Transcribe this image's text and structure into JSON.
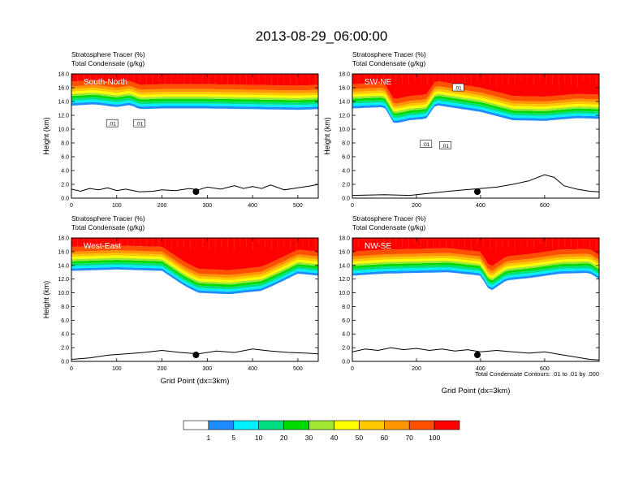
{
  "figure": {
    "title": "2013-08-29_06:00:00",
    "footnote": "Total Condensate Contours: .01 to .01 by .000"
  },
  "colorbar": {
    "colors": [
      "#ffffff",
      "#1e8cff",
      "#00f0ff",
      "#00e080",
      "#00dc00",
      "#a0e632",
      "#ffff00",
      "#ffc800",
      "#ff9600",
      "#ff5000",
      "#ff0000"
    ],
    "labels": [
      "1",
      "5",
      "10",
      "20",
      "30",
      "40",
      "50",
      "60",
      "70",
      "100"
    ]
  },
  "chart_data": [
    {
      "type": "heatmap",
      "panel_label": "South-North",
      "header": [
        "Stratosphere Tracer   (%)",
        "Total Condensate   (g/kg)"
      ],
      "ylabel": "Height (km)",
      "xlabel": "",
      "xlim": [
        0,
        545
      ],
      "ylim": [
        0,
        18
      ],
      "xticks": [
        "0",
        "100",
        "200",
        "300",
        "400",
        "500"
      ],
      "yticks": [
        "0.0",
        "2.0",
        "4.0",
        "6.0",
        "8.0",
        "10.0",
        "12.0",
        "14.0",
        "16.0",
        "18.0"
      ],
      "tracer_base_km": [
        [
          0,
          13.4
        ],
        [
          50,
          13.6
        ],
        [
          100,
          13.2
        ],
        [
          130,
          13.5
        ],
        [
          150,
          12.9
        ],
        [
          200,
          13.0
        ],
        [
          300,
          13.0
        ],
        [
          400,
          12.9
        ],
        [
          500,
          12.8
        ],
        [
          545,
          12.9
        ]
      ],
      "terrain_km": [
        [
          0,
          1.3
        ],
        [
          20,
          1.0
        ],
        [
          40,
          1.4
        ],
        [
          60,
          1.2
        ],
        [
          80,
          1.5
        ],
        [
          100,
          1.1
        ],
        [
          120,
          1.3
        ],
        [
          150,
          0.9
        ],
        [
          180,
          1.0
        ],
        [
          200,
          1.2
        ],
        [
          230,
          1.1
        ],
        [
          260,
          1.4
        ],
        [
          280,
          1.2
        ],
        [
          300,
          1.6
        ],
        [
          330,
          1.3
        ],
        [
          360,
          1.8
        ],
        [
          380,
          1.4
        ],
        [
          400,
          1.7
        ],
        [
          420,
          1.4
        ],
        [
          440,
          1.9
        ],
        [
          470,
          1.2
        ],
        [
          500,
          1.5
        ],
        [
          530,
          1.8
        ],
        [
          545,
          2.0
        ]
      ],
      "marker_x": 275,
      "contour_labels": [
        ".01",
        ".01"
      ]
    },
    {
      "type": "heatmap",
      "panel_label": "SW-NE",
      "header": [
        "Stratosphere Tracer   (%)",
        "Total Condensate   (g/kg)"
      ],
      "ylabel": "Height (km)",
      "xlabel": "",
      "xlim": [
        0,
        770
      ],
      "ylim": [
        0,
        18
      ],
      "xticks": [
        "0",
        "200",
        "400",
        "600"
      ],
      "yticks": [
        "0.0",
        "2.0",
        "4.0",
        "6.0",
        "8.0",
        "10.0",
        "12.0",
        "14.0",
        "16.0",
        "18.0"
      ],
      "tracer_base_km": [
        [
          0,
          13.0
        ],
        [
          100,
          13.2
        ],
        [
          130,
          10.8
        ],
        [
          180,
          11.3
        ],
        [
          230,
          11.5
        ],
        [
          260,
          13.5
        ],
        [
          300,
          13.2
        ],
        [
          400,
          12.5
        ],
        [
          500,
          11.3
        ],
        [
          600,
          11.2
        ],
        [
          700,
          11.6
        ],
        [
          770,
          11.5
        ]
      ],
      "terrain_km": [
        [
          0,
          0.4
        ],
        [
          100,
          0.5
        ],
        [
          180,
          0.4
        ],
        [
          220,
          0.6
        ],
        [
          260,
          0.8
        ],
        [
          300,
          1.0
        ],
        [
          350,
          1.2
        ],
        [
          400,
          1.4
        ],
        [
          450,
          1.6
        ],
        [
          500,
          2.0
        ],
        [
          550,
          2.5
        ],
        [
          600,
          3.4
        ],
        [
          630,
          3.0
        ],
        [
          660,
          1.8
        ],
        [
          700,
          1.3
        ],
        [
          740,
          1.0
        ],
        [
          770,
          0.9
        ]
      ],
      "marker_x": 390,
      "contour_labels": [
        ".01",
        ".01",
        ".01"
      ]
    },
    {
      "type": "heatmap",
      "panel_label": "West-East",
      "header": [
        "Stratosphere Tracer   (%)",
        "Total Condensate   (g/kg)"
      ],
      "ylabel": "Height (km)",
      "xlabel": "Grid Point (dx=3km)",
      "xlim": [
        0,
        545
      ],
      "ylim": [
        0,
        18
      ],
      "xticks": [
        "0",
        "100",
        "200",
        "300",
        "400",
        "500"
      ],
      "yticks": [
        "0.0",
        "2.0",
        "4.0",
        "6.0",
        "8.0",
        "10.0",
        "12.0",
        "14.0",
        "16.0",
        "18.0"
      ],
      "tracer_base_km": [
        [
          0,
          13.2
        ],
        [
          100,
          13.4
        ],
        [
          200,
          13.2
        ],
        [
          250,
          11.0
        ],
        [
          280,
          10.0
        ],
        [
          350,
          9.8
        ],
        [
          420,
          10.3
        ],
        [
          460,
          11.5
        ],
        [
          500,
          12.8
        ],
        [
          545,
          12.5
        ]
      ],
      "terrain_km": [
        [
          0,
          0.3
        ],
        [
          40,
          0.5
        ],
        [
          80,
          0.9
        ],
        [
          120,
          1.1
        ],
        [
          160,
          1.3
        ],
        [
          200,
          1.6
        ],
        [
          240,
          1.3
        ],
        [
          280,
          1.1
        ],
        [
          320,
          1.5
        ],
        [
          360,
          1.3
        ],
        [
          400,
          1.8
        ],
        [
          440,
          1.5
        ],
        [
          480,
          1.3
        ],
        [
          520,
          1.2
        ],
        [
          545,
          1.1
        ]
      ],
      "marker_x": 275,
      "contour_labels": []
    },
    {
      "type": "heatmap",
      "panel_label": "NW-SE",
      "header": [
        "Stratosphere Tracer   (%)",
        "Total Condensate   (g/kg)"
      ],
      "ylabel": "",
      "xlabel": "Grid Point (dx=3km)",
      "xlim": [
        0,
        770
      ],
      "ylim": [
        0,
        18
      ],
      "xticks": [
        "0",
        "200",
        "400",
        "600"
      ],
      "yticks": [
        "0.0",
        "2.0",
        "4.0",
        "6.0",
        "8.0",
        "10.0",
        "12.0",
        "14.0",
        "16.0",
        "18.0"
      ],
      "tracer_base_km": [
        [
          0,
          12.5
        ],
        [
          100,
          12.8
        ],
        [
          200,
          12.9
        ],
        [
          300,
          13.0
        ],
        [
          400,
          12.5
        ],
        [
          430,
          10.2
        ],
        [
          480,
          11.8
        ],
        [
          560,
          12.2
        ],
        [
          650,
          12.8
        ],
        [
          740,
          12.9
        ],
        [
          770,
          12.0
        ]
      ],
      "terrain_km": [
        [
          0,
          1.4
        ],
        [
          40,
          1.8
        ],
        [
          80,
          1.6
        ],
        [
          120,
          2.0
        ],
        [
          160,
          1.7
        ],
        [
          200,
          1.9
        ],
        [
          240,
          1.6
        ],
        [
          280,
          1.8
        ],
        [
          320,
          1.5
        ],
        [
          360,
          1.7
        ],
        [
          400,
          1.4
        ],
        [
          450,
          1.6
        ],
        [
          500,
          1.4
        ],
        [
          550,
          1.2
        ],
        [
          600,
          1.4
        ],
        [
          650,
          1.0
        ],
        [
          700,
          0.6
        ],
        [
          740,
          0.3
        ],
        [
          770,
          0.2
        ]
      ],
      "marker_x": 390,
      "contour_labels": []
    }
  ]
}
